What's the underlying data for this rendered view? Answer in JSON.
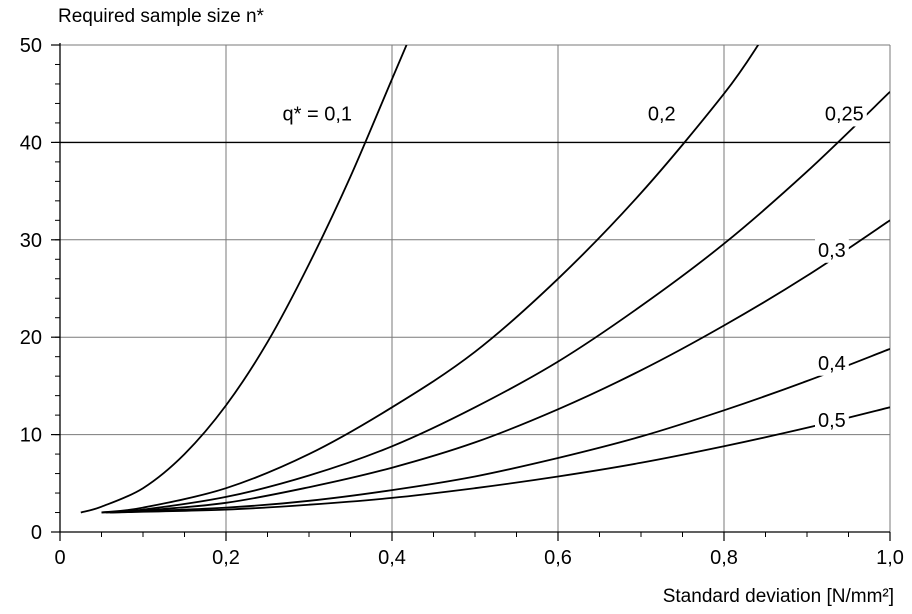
{
  "chart_data": {
    "type": "line",
    "ylabel": "Required sample size n*",
    "xlabel": "Standard deviation [N/mm²]",
    "xlim": [
      0,
      1.0
    ],
    "ylim": [
      0,
      50
    ],
    "x_ticks": [
      0,
      0.2,
      0.4,
      0.6,
      0.8,
      1.0
    ],
    "x_tick_labels": [
      "0",
      "0,2",
      "0,4",
      "0,6",
      "0,8",
      "1,0"
    ],
    "y_ticks": [
      0,
      10,
      20,
      30,
      40,
      50
    ],
    "y_tick_labels": [
      "0",
      "10",
      "20",
      "30",
      "40",
      "50"
    ],
    "grid": true,
    "series": [
      {
        "label": "q* = 0,1",
        "label_at": [
          0.31,
          42.8
        ],
        "points": [
          [
            0.025,
            2
          ],
          [
            0.05,
            2.6
          ],
          [
            0.1,
            4.5
          ],
          [
            0.15,
            8
          ],
          [
            0.2,
            13
          ],
          [
            0.25,
            19.5
          ],
          [
            0.3,
            27.5
          ],
          [
            0.35,
            36.5
          ],
          [
            0.4,
            46.5
          ],
          [
            0.42,
            50.5
          ]
        ]
      },
      {
        "label": "0,2",
        "label_at": [
          0.725,
          42.8
        ],
        "points": [
          [
            0.05,
            2
          ],
          [
            0.1,
            2.5
          ],
          [
            0.2,
            4.5
          ],
          [
            0.3,
            8
          ],
          [
            0.4,
            12.8
          ],
          [
            0.5,
            18.5
          ],
          [
            0.6,
            26
          ],
          [
            0.7,
            34.8
          ],
          [
            0.8,
            45
          ],
          [
            0.845,
            50.5
          ]
        ]
      },
      {
        "label": "0,25",
        "label_at": [
          0.945,
          42.8
        ],
        "points": [
          [
            0.05,
            2
          ],
          [
            0.1,
            2.3
          ],
          [
            0.2,
            3.6
          ],
          [
            0.3,
            5.8
          ],
          [
            0.4,
            8.8
          ],
          [
            0.5,
            12.8
          ],
          [
            0.6,
            17.5
          ],
          [
            0.7,
            23.2
          ],
          [
            0.8,
            29.6
          ],
          [
            0.9,
            37
          ],
          [
            1.0,
            45.2
          ]
        ]
      },
      {
        "label": "0,3",
        "label_at": [
          0.93,
          28.8
        ],
        "points": [
          [
            0.055,
            2
          ],
          [
            0.1,
            2.2
          ],
          [
            0.2,
            3
          ],
          [
            0.3,
            4.6
          ],
          [
            0.4,
            6.6
          ],
          [
            0.5,
            9.2
          ],
          [
            0.6,
            12.6
          ],
          [
            0.7,
            16.6
          ],
          [
            0.8,
            21.2
          ],
          [
            0.9,
            26.3
          ],
          [
            1.0,
            32
          ]
        ]
      },
      {
        "label": "0,4",
        "label_at": [
          0.93,
          17.2
        ],
        "points": [
          [
            0.06,
            2
          ],
          [
            0.2,
            2.5
          ],
          [
            0.3,
            3.2
          ],
          [
            0.4,
            4.3
          ],
          [
            0.5,
            5.7
          ],
          [
            0.6,
            7.6
          ],
          [
            0.7,
            9.8
          ],
          [
            0.8,
            12.5
          ],
          [
            0.9,
            15.5
          ],
          [
            1.0,
            18.8
          ]
        ]
      },
      {
        "label": "0,5",
        "label_at": [
          0.93,
          11.3
        ],
        "points": [
          [
            0.06,
            2
          ],
          [
            0.2,
            2.3
          ],
          [
            0.3,
            2.8
          ],
          [
            0.4,
            3.5
          ],
          [
            0.5,
            4.5
          ],
          [
            0.6,
            5.7
          ],
          [
            0.7,
            7.1
          ],
          [
            0.8,
            8.8
          ],
          [
            0.9,
            10.7
          ],
          [
            1.0,
            12.8
          ]
        ]
      }
    ]
  }
}
